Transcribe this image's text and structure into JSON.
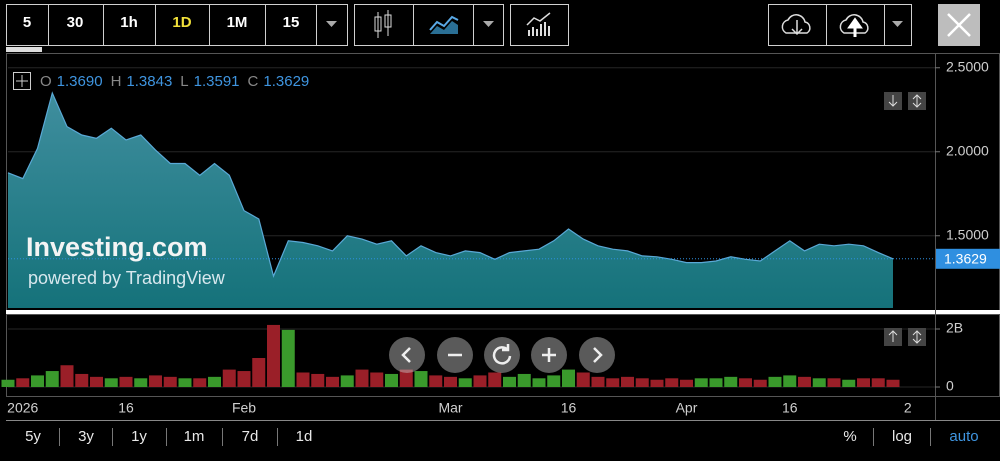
{
  "toolbar": {
    "intervals": [
      "5",
      "30",
      "1h",
      "1D",
      "1M",
      "15"
    ]
  },
  "ohlc": [
    {
      "key": "O",
      "value": 1.369,
      "label": "1.3690"
    },
    {
      "key": "H",
      "value": 1.3843,
      "label": "1.3843"
    },
    {
      "key": "L",
      "value": 1.3591,
      "label": "1.3591"
    },
    {
      "key": "C",
      "value": 1.3629,
      "label": "1.3629"
    }
  ],
  "watermark": {
    "logo": "Investing.com",
    "caption": "powered by TradingView"
  },
  "ranges": [
    "5y",
    "3y",
    "1y",
    "1m",
    "7d",
    "1d"
  ],
  "scale_options": [
    "%",
    "log",
    "auto"
  ],
  "chart_data": [
    {
      "type": "area",
      "color": "#5aa9d6",
      "last_value_color": "#2f8fe0",
      "categories": [
        null,
        "2026",
        null,
        null,
        null,
        null,
        null,
        null,
        "16",
        null,
        null,
        null,
        null,
        null,
        null,
        null,
        "Feb",
        null,
        null,
        null,
        null,
        null,
        null,
        null,
        null,
        null,
        null,
        null,
        null,
        null,
        "Mar",
        null,
        null,
        null,
        null,
        null,
        null,
        null,
        "16",
        null,
        null,
        null,
        null,
        null,
        null,
        null,
        "Apr",
        null,
        null,
        null,
        null,
        null,
        null,
        "16",
        null,
        null,
        null,
        null,
        null,
        null,
        null,
        "2"
      ],
      "values": [
        1.875,
        1.84,
        2.02,
        2.35,
        2.15,
        2.1,
        2.08,
        2.14,
        2.07,
        2.1,
        2.01,
        1.93,
        1.93,
        1.86,
        1.93,
        1.86,
        1.65,
        1.6,
        1.26,
        1.47,
        1.46,
        1.44,
        1.41,
        1.5,
        1.48,
        1.45,
        1.47,
        1.38,
        1.44,
        1.4,
        1.38,
        1.41,
        1.4,
        1.36,
        1.4,
        1.41,
        1.42,
        1.47,
        1.54,
        1.48,
        1.44,
        1.42,
        1.41,
        1.38,
        1.375,
        1.36,
        1.34,
        1.34,
        1.35,
        1.375,
        1.36,
        1.35,
        1.41,
        1.47,
        1.41,
        1.45,
        1.44,
        1.45,
        1.44,
        1.4,
        1.3629,
        null
      ],
      "ylim": [
        1.07,
        2.57
      ],
      "yticks": [
        {
          "value": 2.5,
          "label": "2.5000"
        },
        {
          "value": 2,
          "label": "2.0000"
        },
        {
          "value": 1.5,
          "label": "1.5000"
        }
      ],
      "grid": true
    },
    {
      "type": "bar",
      "up_color": "#3a9a2c",
      "down_color": "#9a1f28",
      "values": [
        0.25,
        0.3,
        0.4,
        0.55,
        0.75,
        0.45,
        0.35,
        0.3,
        0.35,
        0.3,
        0.4,
        0.35,
        0.3,
        0.3,
        0.35,
        0.6,
        0.55,
        1.0,
        2.14,
        1.97,
        0.5,
        0.45,
        0.35,
        0.4,
        0.6,
        0.5,
        0.45,
        0.6,
        0.55,
        0.4,
        0.35,
        0.3,
        0.4,
        0.5,
        0.35,
        0.45,
        0.3,
        0.4,
        0.6,
        0.5,
        0.35,
        0.3,
        0.35,
        0.3,
        0.25,
        0.3,
        0.25,
        0.3,
        0.3,
        0.35,
        0.3,
        0.25,
        0.35,
        0.4,
        0.35,
        0.3,
        0.3,
        0.25,
        0.3,
        0.3,
        0.25,
        null
      ],
      "ylim": [
        0,
        2.4
      ],
      "yticks": [
        {
          "value": 2,
          "label": "2B"
        },
        0
      ],
      "grid": true
    }
  ]
}
